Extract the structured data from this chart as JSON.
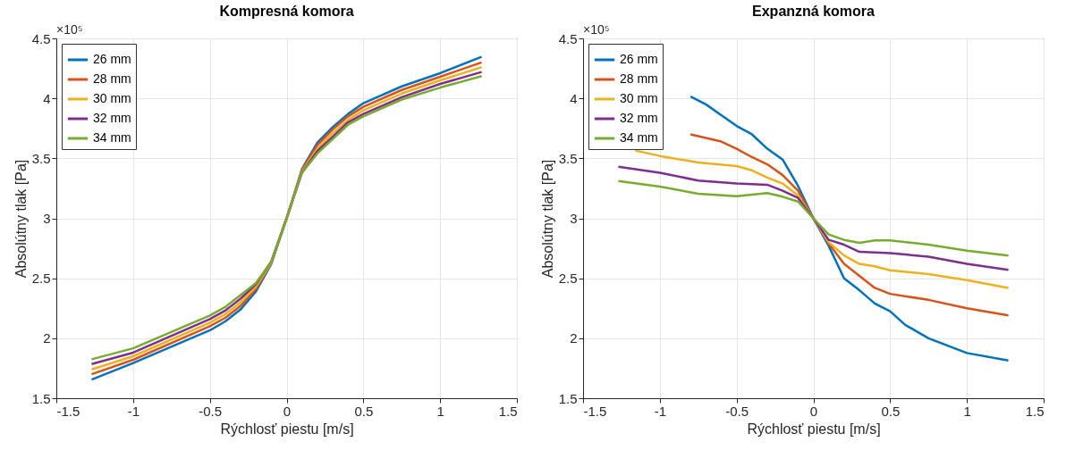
{
  "chart_data": [
    {
      "type": "line",
      "title": "Kompresná komora",
      "xlabel": "Rýchlosť piestu [m/s]",
      "ylabel": "Absolútny tlak [Pa]",
      "annotations": [
        "×10⁵"
      ],
      "xlim": [
        -1.5,
        1.5
      ],
      "xticks": [
        -1.5,
        -1,
        -0.5,
        0,
        0.5,
        1,
        1.5
      ],
      "ylim": [
        1.5,
        4.5
      ],
      "yticks": [
        1.5,
        2,
        2.5,
        3,
        3.5,
        4,
        4.5
      ],
      "grid": true,
      "legend": "top left",
      "line_style": "solid",
      "series": [
        {
          "name": "26 mm",
          "color": "#0072bd",
          "x": [
            -1.27,
            -1,
            -0.5,
            -0.4,
            -0.3,
            -0.2,
            -0.1,
            0,
            0.1,
            0.2,
            0.3,
            0.4,
            0.5,
            0.75,
            1,
            1.27
          ],
          "values": [
            1.656,
            1.793,
            2.066,
            2.14,
            2.24,
            2.39,
            2.62,
            3.0,
            3.41,
            3.63,
            3.76,
            3.87,
            3.96,
            4.1,
            4.21,
            4.346
          ]
        },
        {
          "name": "28 mm",
          "color": "#d95319",
          "x": [
            -1.27,
            -1,
            -0.5,
            -0.4,
            -0.3,
            -0.2,
            -0.1,
            0,
            0.1,
            0.2,
            0.3,
            0.4,
            0.5,
            0.75,
            1,
            1.27
          ],
          "values": [
            1.7,
            1.82,
            2.1,
            2.17,
            2.27,
            2.41,
            2.63,
            3.0,
            3.4,
            3.61,
            3.74,
            3.85,
            3.93,
            4.07,
            4.18,
            4.3
          ]
        },
        {
          "name": "30 mm",
          "color": "#edb120",
          "x": [
            -1.27,
            -1,
            -0.5,
            -0.4,
            -0.3,
            -0.2,
            -0.1,
            0,
            0.1,
            0.2,
            0.3,
            0.4,
            0.5,
            0.75,
            1,
            1.27
          ],
          "values": [
            1.74,
            1.85,
            2.13,
            2.2,
            2.3,
            2.43,
            2.63,
            3.0,
            3.39,
            3.58,
            3.71,
            3.82,
            3.9,
            4.04,
            4.15,
            4.26
          ]
        },
        {
          "name": "32 mm",
          "color": "#7e2f8e",
          "x": [
            -1.27,
            -1,
            -0.5,
            -0.4,
            -0.3,
            -0.2,
            -0.1,
            0,
            0.1,
            0.2,
            0.3,
            0.4,
            0.5,
            0.75,
            1,
            1.27
          ],
          "values": [
            1.785,
            1.88,
            2.16,
            2.23,
            2.33,
            2.45,
            2.64,
            3.0,
            3.38,
            3.56,
            3.68,
            3.8,
            3.87,
            4.01,
            4.12,
            4.22
          ]
        },
        {
          "name": "34 mm",
          "color": "#77ac30",
          "x": [
            -1.27,
            -1,
            -0.5,
            -0.4,
            -0.3,
            -0.2,
            -0.1,
            0,
            0.1,
            0.2,
            0.3,
            0.4,
            0.5,
            0.75,
            1,
            1.27
          ],
          "values": [
            1.825,
            1.916,
            2.19,
            2.26,
            2.36,
            2.46,
            2.64,
            3.0,
            3.38,
            3.54,
            3.66,
            3.78,
            3.85,
            3.99,
            4.09,
            4.185
          ]
        }
      ]
    },
    {
      "type": "line",
      "title": "Expanzná komora",
      "xlabel": "Rýchlosť piestu [m/s]",
      "ylabel": "Absolútny tlak [Pa]",
      "annotations": [
        "×10⁵"
      ],
      "xlim": [
        -1.5,
        1.5
      ],
      "xticks": [
        -1.5,
        -1,
        -0.5,
        0,
        0.5,
        1,
        1.5
      ],
      "ylim": [
        1.5,
        4.5
      ],
      "yticks": [
        1.5,
        2,
        2.5,
        3,
        3.5,
        4,
        4.5
      ],
      "grid": true,
      "legend": "top left",
      "line_style": "solid",
      "series": [
        {
          "name": "26 mm",
          "color": "#0072bd",
          "x": [
            -0.8,
            -0.7,
            -0.6,
            -0.5,
            -0.4,
            -0.3,
            -0.2,
            -0.1,
            0,
            0.1,
            0.2,
            0.3,
            0.4,
            0.5,
            0.6,
            0.75,
            1,
            1.27
          ],
          "values": [
            4.016,
            3.95,
            3.86,
            3.77,
            3.7,
            3.58,
            3.49,
            3.27,
            3.0,
            2.77,
            2.5,
            2.4,
            2.29,
            2.225,
            2.11,
            2.0,
            1.877,
            1.815
          ]
        },
        {
          "name": "28 mm",
          "color": "#d95319",
          "x": [
            -0.8,
            -0.6,
            -0.5,
            -0.4,
            -0.3,
            -0.2,
            -0.1,
            0,
            0.1,
            0.2,
            0.3,
            0.4,
            0.5,
            0.75,
            1,
            1.27
          ],
          "values": [
            3.7,
            3.64,
            3.58,
            3.51,
            3.45,
            3.36,
            3.23,
            3.0,
            2.79,
            2.62,
            2.52,
            2.42,
            2.37,
            2.32,
            2.25,
            2.19
          ]
        },
        {
          "name": "30 mm",
          "color": "#edb120",
          "x": [
            -1.16,
            -1,
            -0.75,
            -0.5,
            -0.4,
            -0.3,
            -0.2,
            -0.1,
            0,
            0.1,
            0.2,
            0.3,
            0.4,
            0.5,
            0.75,
            1,
            1.27
          ],
          "values": [
            3.565,
            3.52,
            3.465,
            3.435,
            3.4,
            3.34,
            3.29,
            3.19,
            3.0,
            2.8,
            2.69,
            2.62,
            2.6,
            2.567,
            2.535,
            2.485,
            2.42
          ]
        },
        {
          "name": "32 mm",
          "color": "#7e2f8e",
          "x": [
            -1.27,
            -1,
            -0.75,
            -0.5,
            -0.3,
            -0.2,
            -0.1,
            0,
            0.1,
            0.2,
            0.3,
            0.5,
            0.75,
            1,
            1.27
          ],
          "values": [
            3.43,
            3.38,
            3.315,
            3.29,
            3.28,
            3.23,
            3.17,
            3.0,
            2.82,
            2.78,
            2.72,
            2.71,
            2.68,
            2.62,
            2.57
          ]
        },
        {
          "name": "34 mm",
          "color": "#77ac30",
          "x": [
            -1.27,
            -1,
            -0.75,
            -0.5,
            -0.3,
            -0.2,
            -0.1,
            0,
            0.1,
            0.2,
            0.3,
            0.4,
            0.5,
            0.75,
            1,
            1.27
          ],
          "values": [
            3.31,
            3.265,
            3.205,
            3.185,
            3.21,
            3.18,
            3.14,
            3.0,
            2.865,
            2.82,
            2.795,
            2.815,
            2.815,
            2.78,
            2.73,
            2.69
          ]
        }
      ]
    }
  ]
}
